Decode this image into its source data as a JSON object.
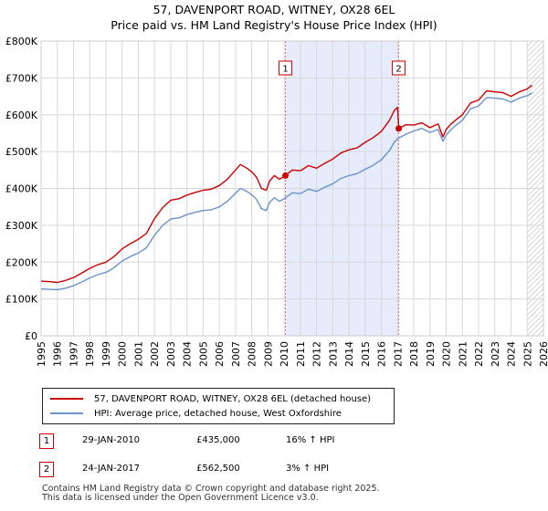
{
  "title_line1": "57, DAVENPORT ROAD, WITNEY, OX28 6EL",
  "title_line2": "Price paid vs. HM Land Registry's House Price Index (HPI)",
  "chart_data": {
    "type": "line",
    "title": "57, DAVENPORT ROAD, WITNEY, OX28 6EL — Price paid vs. HM Land Registry's House Price Index (HPI)",
    "xlabel": "",
    "ylabel": "",
    "xlim": [
      1995,
      2026
    ],
    "ylim": [
      0,
      800000
    ],
    "x_ticks": [
      "1995",
      "1996",
      "1997",
      "1998",
      "1999",
      "2000",
      "2001",
      "2002",
      "2003",
      "2004",
      "2005",
      "2006",
      "2007",
      "2008",
      "2009",
      "2010",
      "2011",
      "2012",
      "2013",
      "2014",
      "2015",
      "2016",
      "2017",
      "2018",
      "2019",
      "2020",
      "2021",
      "2022",
      "2023",
      "2024",
      "2025",
      "2026"
    ],
    "y_ticks": [
      {
        "value": 0,
        "label": "£0"
      },
      {
        "value": 100000,
        "label": "£100K"
      },
      {
        "value": 200000,
        "label": "£200K"
      },
      {
        "value": 300000,
        "label": "£300K"
      },
      {
        "value": 400000,
        "label": "£400K"
      },
      {
        "value": 500000,
        "label": "£500K"
      },
      {
        "value": 600000,
        "label": "£600K"
      },
      {
        "value": 700000,
        "label": "£700K"
      },
      {
        "value": 800000,
        "label": "£800K"
      }
    ],
    "grid": true,
    "shaded_range": [
      2010.08,
      2017.07
    ],
    "forecast_from": 2025.0,
    "series": [
      {
        "name": "57, DAVENPORT ROAD, WITNEY, OX28 6EL (detached house)",
        "color": "#cc0000",
        "x": [
          1995.0,
          1995.5,
          1996.0,
          1996.5,
          1997.0,
          1997.5,
          1998.0,
          1998.5,
          1999.0,
          1999.5,
          2000.0,
          2000.5,
          2001.0,
          2001.5,
          2002.0,
          2002.5,
          2003.0,
          2003.5,
          2004.0,
          2004.5,
          2005.0,
          2005.5,
          2006.0,
          2006.5,
          2007.0,
          2007.3,
          2007.7,
          2008.0,
          2008.3,
          2008.6,
          2008.9,
          2009.1,
          2009.4,
          2009.7,
          2010.0,
          2010.08,
          2010.5,
          2011.0,
          2011.5,
          2012.0,
          2012.5,
          2013.0,
          2013.5,
          2014.0,
          2014.5,
          2015.0,
          2015.5,
          2016.0,
          2016.5,
          2016.8,
          2017.0,
          2017.07,
          2017.5,
          2018.0,
          2018.5,
          2019.0,
          2019.5,
          2019.8,
          2020.0,
          2020.3,
          2020.7,
          2021.0,
          2021.5,
          2022.0,
          2022.5,
          2023.0,
          2023.5,
          2024.0,
          2024.5,
          2025.0,
          2025.3
        ],
        "values": [
          148000,
          147000,
          145000,
          150000,
          158000,
          170000,
          183000,
          193000,
          200000,
          215000,
          236000,
          250000,
          262000,
          278000,
          318000,
          348000,
          368000,
          372000,
          382000,
          389000,
          395000,
          398000,
          408000,
          425000,
          450000,
          465000,
          455000,
          445000,
          430000,
          400000,
          395000,
          420000,
          435000,
          425000,
          432000,
          435000,
          450000,
          448000,
          462000,
          455000,
          468000,
          480000,
          496000,
          505000,
          510000,
          525000,
          538000,
          555000,
          585000,
          612000,
          620000,
          562500,
          573000,
          572000,
          578000,
          565000,
          575000,
          540000,
          560000,
          575000,
          590000,
          600000,
          632000,
          640000,
          665000,
          662000,
          660000,
          650000,
          662000,
          670000,
          680000
        ]
      },
      {
        "name": "HPI: Average price, detached house, West Oxfordshire",
        "color": "#6a93cc",
        "x": [
          1995.0,
          1995.5,
          1996.0,
          1996.5,
          1997.0,
          1997.5,
          1998.0,
          1998.5,
          1999.0,
          1999.5,
          2000.0,
          2000.5,
          2001.0,
          2001.5,
          2002.0,
          2002.5,
          2003.0,
          2003.5,
          2004.0,
          2004.5,
          2005.0,
          2005.5,
          2006.0,
          2006.5,
          2007.0,
          2007.3,
          2007.7,
          2008.0,
          2008.3,
          2008.6,
          2008.9,
          2009.1,
          2009.4,
          2009.7,
          2010.0,
          2010.5,
          2011.0,
          2011.5,
          2012.0,
          2012.5,
          2013.0,
          2013.5,
          2014.0,
          2014.5,
          2015.0,
          2015.5,
          2016.0,
          2016.5,
          2016.8,
          2017.0,
          2017.5,
          2018.0,
          2018.5,
          2019.0,
          2019.5,
          2019.8,
          2020.0,
          2020.3,
          2020.7,
          2021.0,
          2021.5,
          2022.0,
          2022.5,
          2023.0,
          2023.5,
          2024.0,
          2024.5,
          2025.0,
          2025.3
        ],
        "values": [
          127000,
          126000,
          125000,
          129000,
          136000,
          146000,
          157000,
          166000,
          172000,
          185000,
          203000,
          215000,
          225000,
          239000,
          273000,
          300000,
          317000,
          320000,
          329000,
          335000,
          340000,
          342000,
          350000,
          365000,
          387000,
          400000,
          392000,
          383000,
          370000,
          345000,
          340000,
          362000,
          375000,
          365000,
          372000,
          388000,
          386000,
          398000,
          392000,
          403000,
          413000,
          427000,
          435000,
          440000,
          452000,
          463000,
          478000,
          503000,
          526000,
          535000,
          547000,
          556000,
          563000,
          552000,
          560000,
          528000,
          545000,
          560000,
          575000,
          585000,
          616000,
          624000,
          647000,
          645000,
          643000,
          634000,
          645000,
          652000,
          660000
        ]
      }
    ],
    "markers": [
      {
        "label": "1",
        "x": 2010.08,
        "value": 435000
      },
      {
        "label": "2",
        "x": 2017.07,
        "value": 562500
      }
    ]
  },
  "legend": {
    "items": [
      {
        "label": "57, DAVENPORT ROAD, WITNEY, OX28 6EL (detached house)",
        "color": "#cc0000"
      },
      {
        "label": "HPI: Average price, detached house, West Oxfordshire",
        "color": "#6a93cc"
      }
    ]
  },
  "sales": [
    {
      "badge": "1",
      "date": "29-JAN-2010",
      "price": "£435,000",
      "hpi": "16% ↑ HPI"
    },
    {
      "badge": "2",
      "date": "24-JAN-2017",
      "price": "£562,500",
      "hpi": "3% ↑ HPI"
    }
  ],
  "footer": {
    "line1": "Contains HM Land Registry data © Crown copyright and database right 2025.",
    "line2": "This data is licensed under the Open Government Licence v3.0."
  }
}
